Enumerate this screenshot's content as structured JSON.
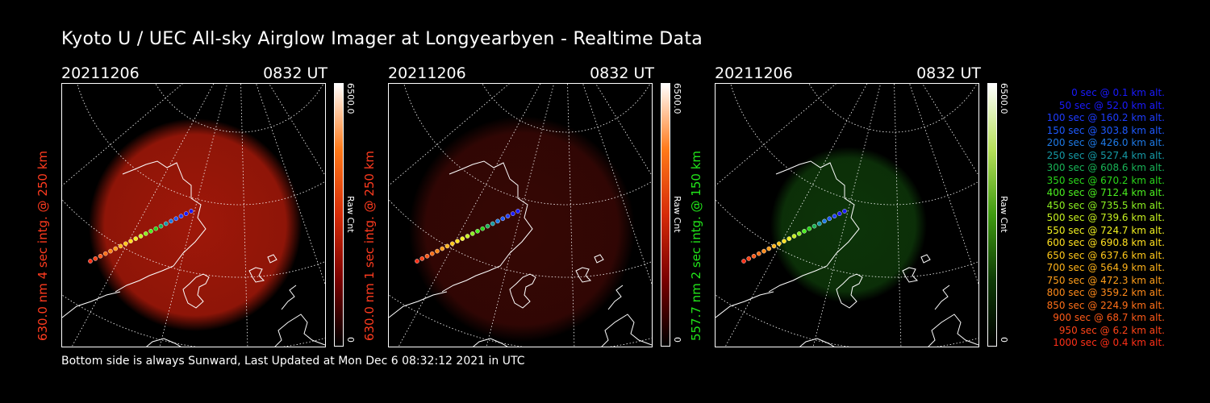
{
  "title": "Kyoto U / UEC All-sky Airglow Imager at Longyearbyen - Realtime Data",
  "footer": "Bottom side is always Sunward, Last Updated at Mon Dec  6 08:32:12 2021 in UTC",
  "panels": [
    {
      "date": "20211206",
      "time": "0832 UT",
      "label": "630.0 nm 4 sec intg. @ 250 km",
      "label_color": "#ff3b1f",
      "glow_color": "#b01a0a",
      "glow_opacity": 0.9,
      "cbar_max": "6500.0",
      "cbar_min": "0",
      "cbar_label": "Raw Cnt",
      "cbar_colors": [
        "#ffffff",
        "#ff7a1a",
        "#d62b08",
        "#7a0000",
        "#000000"
      ]
    },
    {
      "date": "20211206",
      "time": "0832 UT",
      "label": "630.0 nm 1 sec intg. @ 250 km",
      "label_color": "#ff3b1f",
      "glow_color": "#3c0805",
      "glow_opacity": 0.9,
      "cbar_max": "6500.0",
      "cbar_min": "0",
      "cbar_label": "Raw Cnt",
      "cbar_colors": [
        "#ffffff",
        "#ff7a1a",
        "#d62b08",
        "#7a0000",
        "#000000"
      ]
    },
    {
      "date": "20211206",
      "time": "0832 UT",
      "label": "557.7 nm 2 sec intg. @ 150 km",
      "label_color": "#22e61a",
      "glow_color": "#0e3a0a",
      "glow_opacity": 0.9,
      "cbar_max": "6500.0",
      "cbar_min": "0",
      "cbar_label": "Raw Cnt",
      "cbar_colors": [
        "#ffffff",
        "#b6e05a",
        "#3f9a10",
        "#0e3a06",
        "#000000"
      ]
    }
  ],
  "trajectory": [
    {
      "time": "0 sec",
      "alt": "0.1 km alt.",
      "color": "#1a1aff"
    },
    {
      "time": "50 sec",
      "alt": "52.0 km alt.",
      "color": "#1a1aff"
    },
    {
      "time": "100 sec",
      "alt": "160.2 km alt.",
      "color": "#1e3cff"
    },
    {
      "time": "150 sec",
      "alt": "303.8 km alt.",
      "color": "#1e5aff"
    },
    {
      "time": "200 sec",
      "alt": "426.0 km alt.",
      "color": "#1e7ae6"
    },
    {
      "time": "250 sec",
      "alt": "527.4 km alt.",
      "color": "#159aa6"
    },
    {
      "time": "300 sec",
      "alt": "608.6 km alt.",
      "color": "#18b457"
    },
    {
      "time": "350 sec",
      "alt": "670.2 km alt.",
      "color": "#2ad61a"
    },
    {
      "time": "400 sec",
      "alt": "712.4 km alt.",
      "color": "#4cf020"
    },
    {
      "time": "450 sec",
      "alt": "735.5 km alt.",
      "color": "#8cf020"
    },
    {
      "time": "500 sec",
      "alt": "739.6 km alt.",
      "color": "#c6f020"
    },
    {
      "time": "550 sec",
      "alt": "724.7 km alt.",
      "color": "#f0f020"
    },
    {
      "time": "600 sec",
      "alt": "690.8 km alt.",
      "color": "#ffe020"
    },
    {
      "time": "650 sec",
      "alt": "637.6 km alt.",
      "color": "#ffc81a"
    },
    {
      "time": "700 sec",
      "alt": "564.9 km alt.",
      "color": "#ffb41a"
    },
    {
      "time": "750 sec",
      "alt": "472.3 km alt.",
      "color": "#ff9e1a"
    },
    {
      "time": "800 sec",
      "alt": "359.2 km alt.",
      "color": "#ff8a1a"
    },
    {
      "time": "850 sec",
      "alt": "224.9 km alt.",
      "color": "#ff7018"
    },
    {
      "time": "900 sec",
      "alt": "68.7 km alt.",
      "color": "#ff5a18"
    },
    {
      "time": "950 sec",
      "alt": "6.2 km alt.",
      "color": "#ff4418"
    },
    {
      "time": "1000 sec",
      "alt": "0.4 km alt.",
      "color": "#ff3018"
    }
  ]
}
